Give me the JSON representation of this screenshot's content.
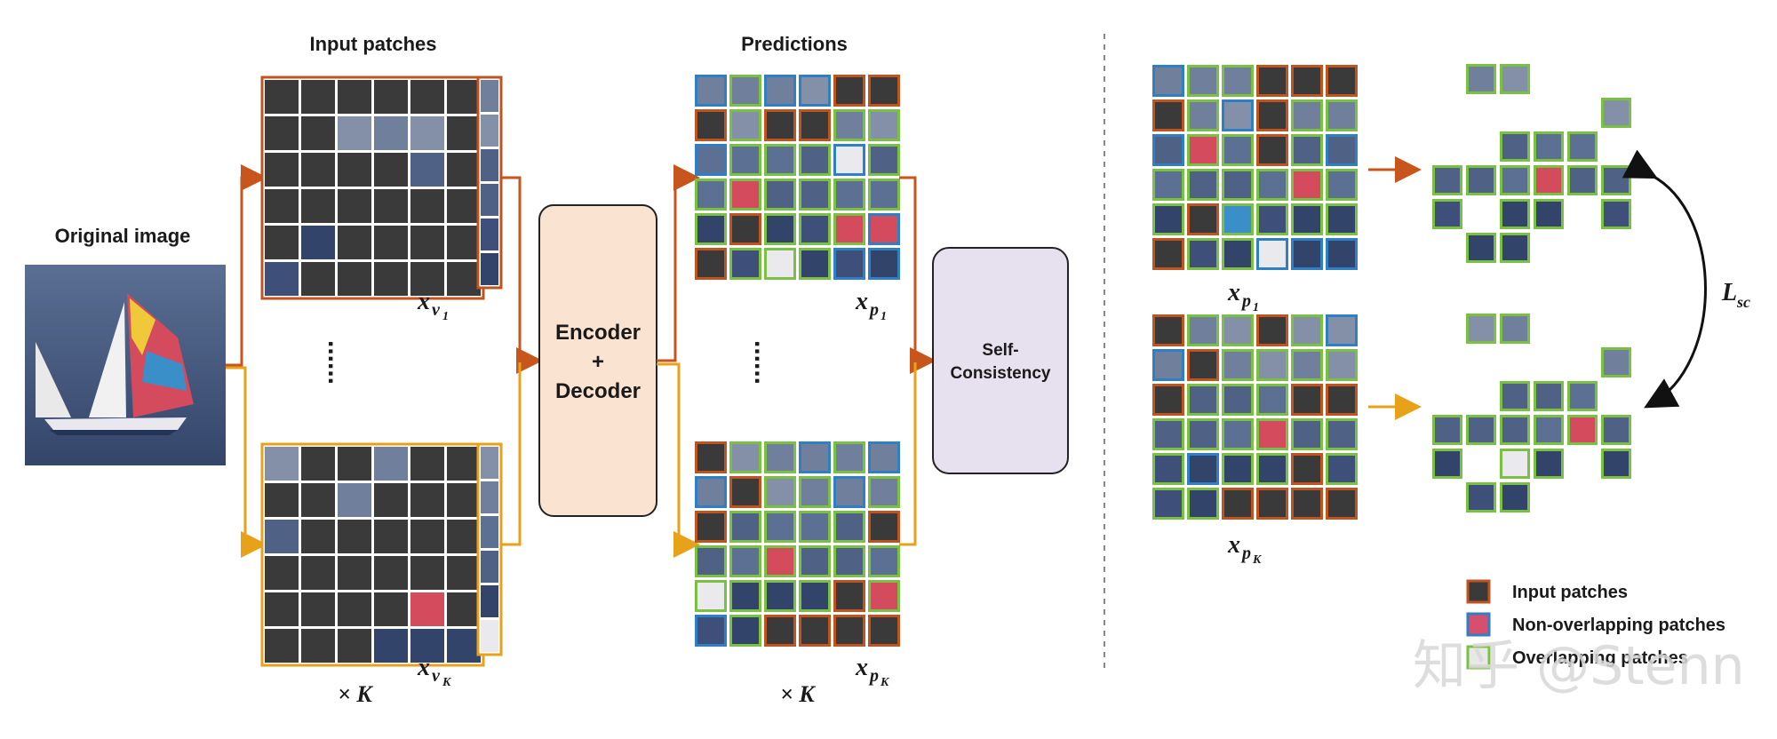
{
  "labels": {
    "original_image": "Original image",
    "input_patches": "Input patches",
    "predictions": "Predictions",
    "times_k_left": "× K",
    "times_k_mid": "× K",
    "dots": "......",
    "encoder": "Encoder",
    "plus": "+",
    "decoder": "Decoder",
    "self": "Self-",
    "consistency": "Consistency",
    "x": "x",
    "v1": "v",
    "v1_sub": "1",
    "vk": "v",
    "vk_sub": "K",
    "p1": "p",
    "p1_sub": "1",
    "pk": "p",
    "pk_sub": "K",
    "lsc": "L",
    "lsc_sub": "sc"
  },
  "legend": [
    {
      "label": "Input patches",
      "border": "#c0541e",
      "fill": "#3a3a3a"
    },
    {
      "label": "Non-overlapping patches",
      "border": "#2f7fc4",
      "fill": "#d6506e"
    },
    {
      "label": "Overlapping patches",
      "border": "#7ac143",
      "fill": "#e8e8e8"
    }
  ],
  "watermark": "知乎 @Stenn",
  "colors": {
    "orange_path": "#c8561c",
    "yellow_path": "#e8a21a",
    "input_border": "#c0541e",
    "nonoverlap_border": "#2f7fc4",
    "overlap_border": "#7ac143",
    "encoder_fill": "#fbe3d2",
    "consistency_fill": "#e7e0ee",
    "dark_patch": "#3a3a3a",
    "sea": "#4a5d80"
  }
}
